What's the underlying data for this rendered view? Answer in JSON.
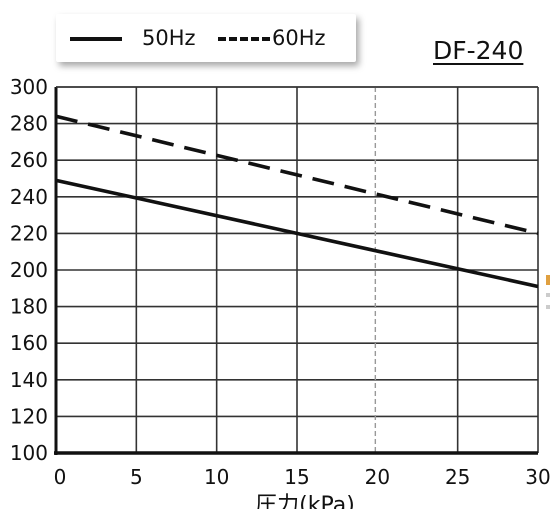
{
  "chart_data": {
    "type": "line",
    "title": "DF-240",
    "xlabel": "圧力(kPa)",
    "ylabel": "",
    "xlim": [
      0,
      30
    ],
    "ylim": [
      100,
      300
    ],
    "xticks": [
      0,
      5,
      10,
      15,
      20,
      25,
      30
    ],
    "yticks": [
      100,
      120,
      140,
      160,
      180,
      200,
      220,
      240,
      260,
      280,
      300
    ],
    "grid": true,
    "legend": "top-left",
    "reference_line": {
      "x": 20,
      "style": "dashed-gray"
    },
    "series": [
      {
        "name": "50Hz",
        "style": "solid",
        "x": [
          0,
          30
        ],
        "y": [
          249,
          191
        ]
      },
      {
        "name": "60Hz",
        "style": "dashed",
        "x": [
          0,
          30
        ],
        "y": [
          284,
          220
        ]
      }
    ]
  },
  "colors": {
    "line": "#111111",
    "grid": "#333333",
    "reference": "#999999"
  }
}
